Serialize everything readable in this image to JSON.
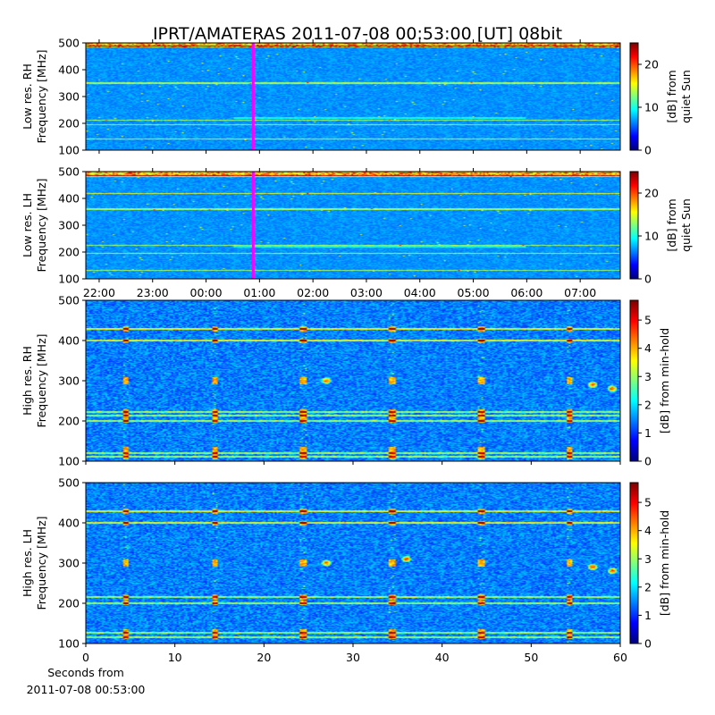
{
  "figure": {
    "title": "IPRT/AMATERAS 2011-07-08 00:53:00 [UT]   08bit",
    "footer_line1": "Seconds from",
    "footer_line2": "2011-07-08 00:53:00"
  },
  "colormap": {
    "name": "jet",
    "stops": [
      "#00007f",
      "#0000ff",
      "#007fff",
      "#00ffff",
      "#7fff7f",
      "#ffff00",
      "#ff7f00",
      "#ff0000",
      "#7f0000"
    ],
    "marker_color": "#ff00ff"
  },
  "chart_data": [
    {
      "type": "heatmap",
      "panel": "Low res. RH",
      "ylabel_line1": "Low res. RH",
      "ylabel_line2": "Frequency [MHz]",
      "ylim": [
        100,
        500
      ],
      "yticks": [
        "100",
        "200",
        "300",
        "400",
        "500"
      ],
      "xlim_hours": [
        21.75,
        31.75
      ],
      "marker_time": "00:53",
      "colorbar": {
        "label_line1": "[dB] from",
        "label_line2": "quiet Sun",
        "range": [
          0,
          25
        ],
        "ticks": [
          "0",
          "10",
          "20"
        ]
      },
      "bright_bands_mhz": [
        490,
        140,
        350,
        210,
        195
      ],
      "base_level": 0.27
    },
    {
      "type": "heatmap",
      "panel": "Low res. LH",
      "ylabel_line1": "Low res. LH",
      "ylabel_line2": "Frequency [MHz]",
      "ylim": [
        100,
        500
      ],
      "yticks": [
        "100",
        "200",
        "300",
        "400",
        "500"
      ],
      "xlim_hours": [
        21.75,
        31.75
      ],
      "xticks": [
        "22:00",
        "23:00",
        "00:00",
        "01:00",
        "02:00",
        "03:00",
        "04:00",
        "05:00",
        "06:00",
        "07:00"
      ],
      "marker_time": "00:53",
      "colorbar": {
        "label_line1": "[dB] from",
        "label_line2": "quiet Sun",
        "range": [
          0,
          25
        ],
        "ticks": [
          "0",
          "10",
          "20"
        ]
      },
      "bright_bands_mhz": [
        485,
        420,
        360,
        225,
        195,
        130
      ],
      "base_level": 0.27
    },
    {
      "type": "heatmap",
      "panel": "High res. RH",
      "ylabel_line1": "High res. RH",
      "ylabel_line2": "Frequency [MHz]",
      "ylim": [
        100,
        500
      ],
      "yticks": [
        "100",
        "200",
        "300",
        "400",
        "500"
      ],
      "xlim_seconds": [
        0,
        60
      ],
      "colorbar": {
        "label_line1": "[dB] from min-hold",
        "label_line2": "",
        "range": [
          0,
          5.7
        ],
        "ticks": [
          "0",
          "1",
          "2",
          "3",
          "4",
          "5"
        ]
      },
      "bright_bands_mhz": [
        430,
        400,
        222,
        213,
        200,
        120,
        110
      ],
      "spike_times_s": [
        4.4,
        14.4,
        24.4,
        34.4,
        44.4,
        54.4
      ],
      "spot_bursts": [
        {
          "t": 57.0,
          "mhz": 290
        },
        {
          "t": 59.2,
          "mhz": 280
        },
        {
          "t": 27.0,
          "mhz": 300
        }
      ],
      "base_level": 0.25
    },
    {
      "type": "heatmap",
      "panel": "High res. LH",
      "ylabel_line1": "High res. LH",
      "ylabel_line2": "Frequency [MHz]",
      "ylim": [
        100,
        500
      ],
      "yticks": [
        "100",
        "200",
        "300",
        "400",
        "500"
      ],
      "xlim_seconds": [
        0,
        60
      ],
      "xticks": [
        "0",
        "10",
        "20",
        "30",
        "40",
        "50",
        "60"
      ],
      "colorbar": {
        "label_line1": "[dB] from min-hold",
        "label_line2": "",
        "range": [
          0,
          5.7
        ],
        "ticks": [
          "0",
          "1",
          "2",
          "3",
          "4",
          "5"
        ]
      },
      "bright_bands_mhz": [
        430,
        400,
        215,
        200,
        115,
        125
      ],
      "spike_times_s": [
        4.4,
        14.4,
        24.4,
        34.4,
        44.4,
        54.4
      ],
      "spot_bursts": [
        {
          "t": 57.0,
          "mhz": 290
        },
        {
          "t": 59.2,
          "mhz": 280
        },
        {
          "t": 27.0,
          "mhz": 300
        },
        {
          "t": 36.0,
          "mhz": 310
        }
      ],
      "base_level": 0.25
    }
  ]
}
